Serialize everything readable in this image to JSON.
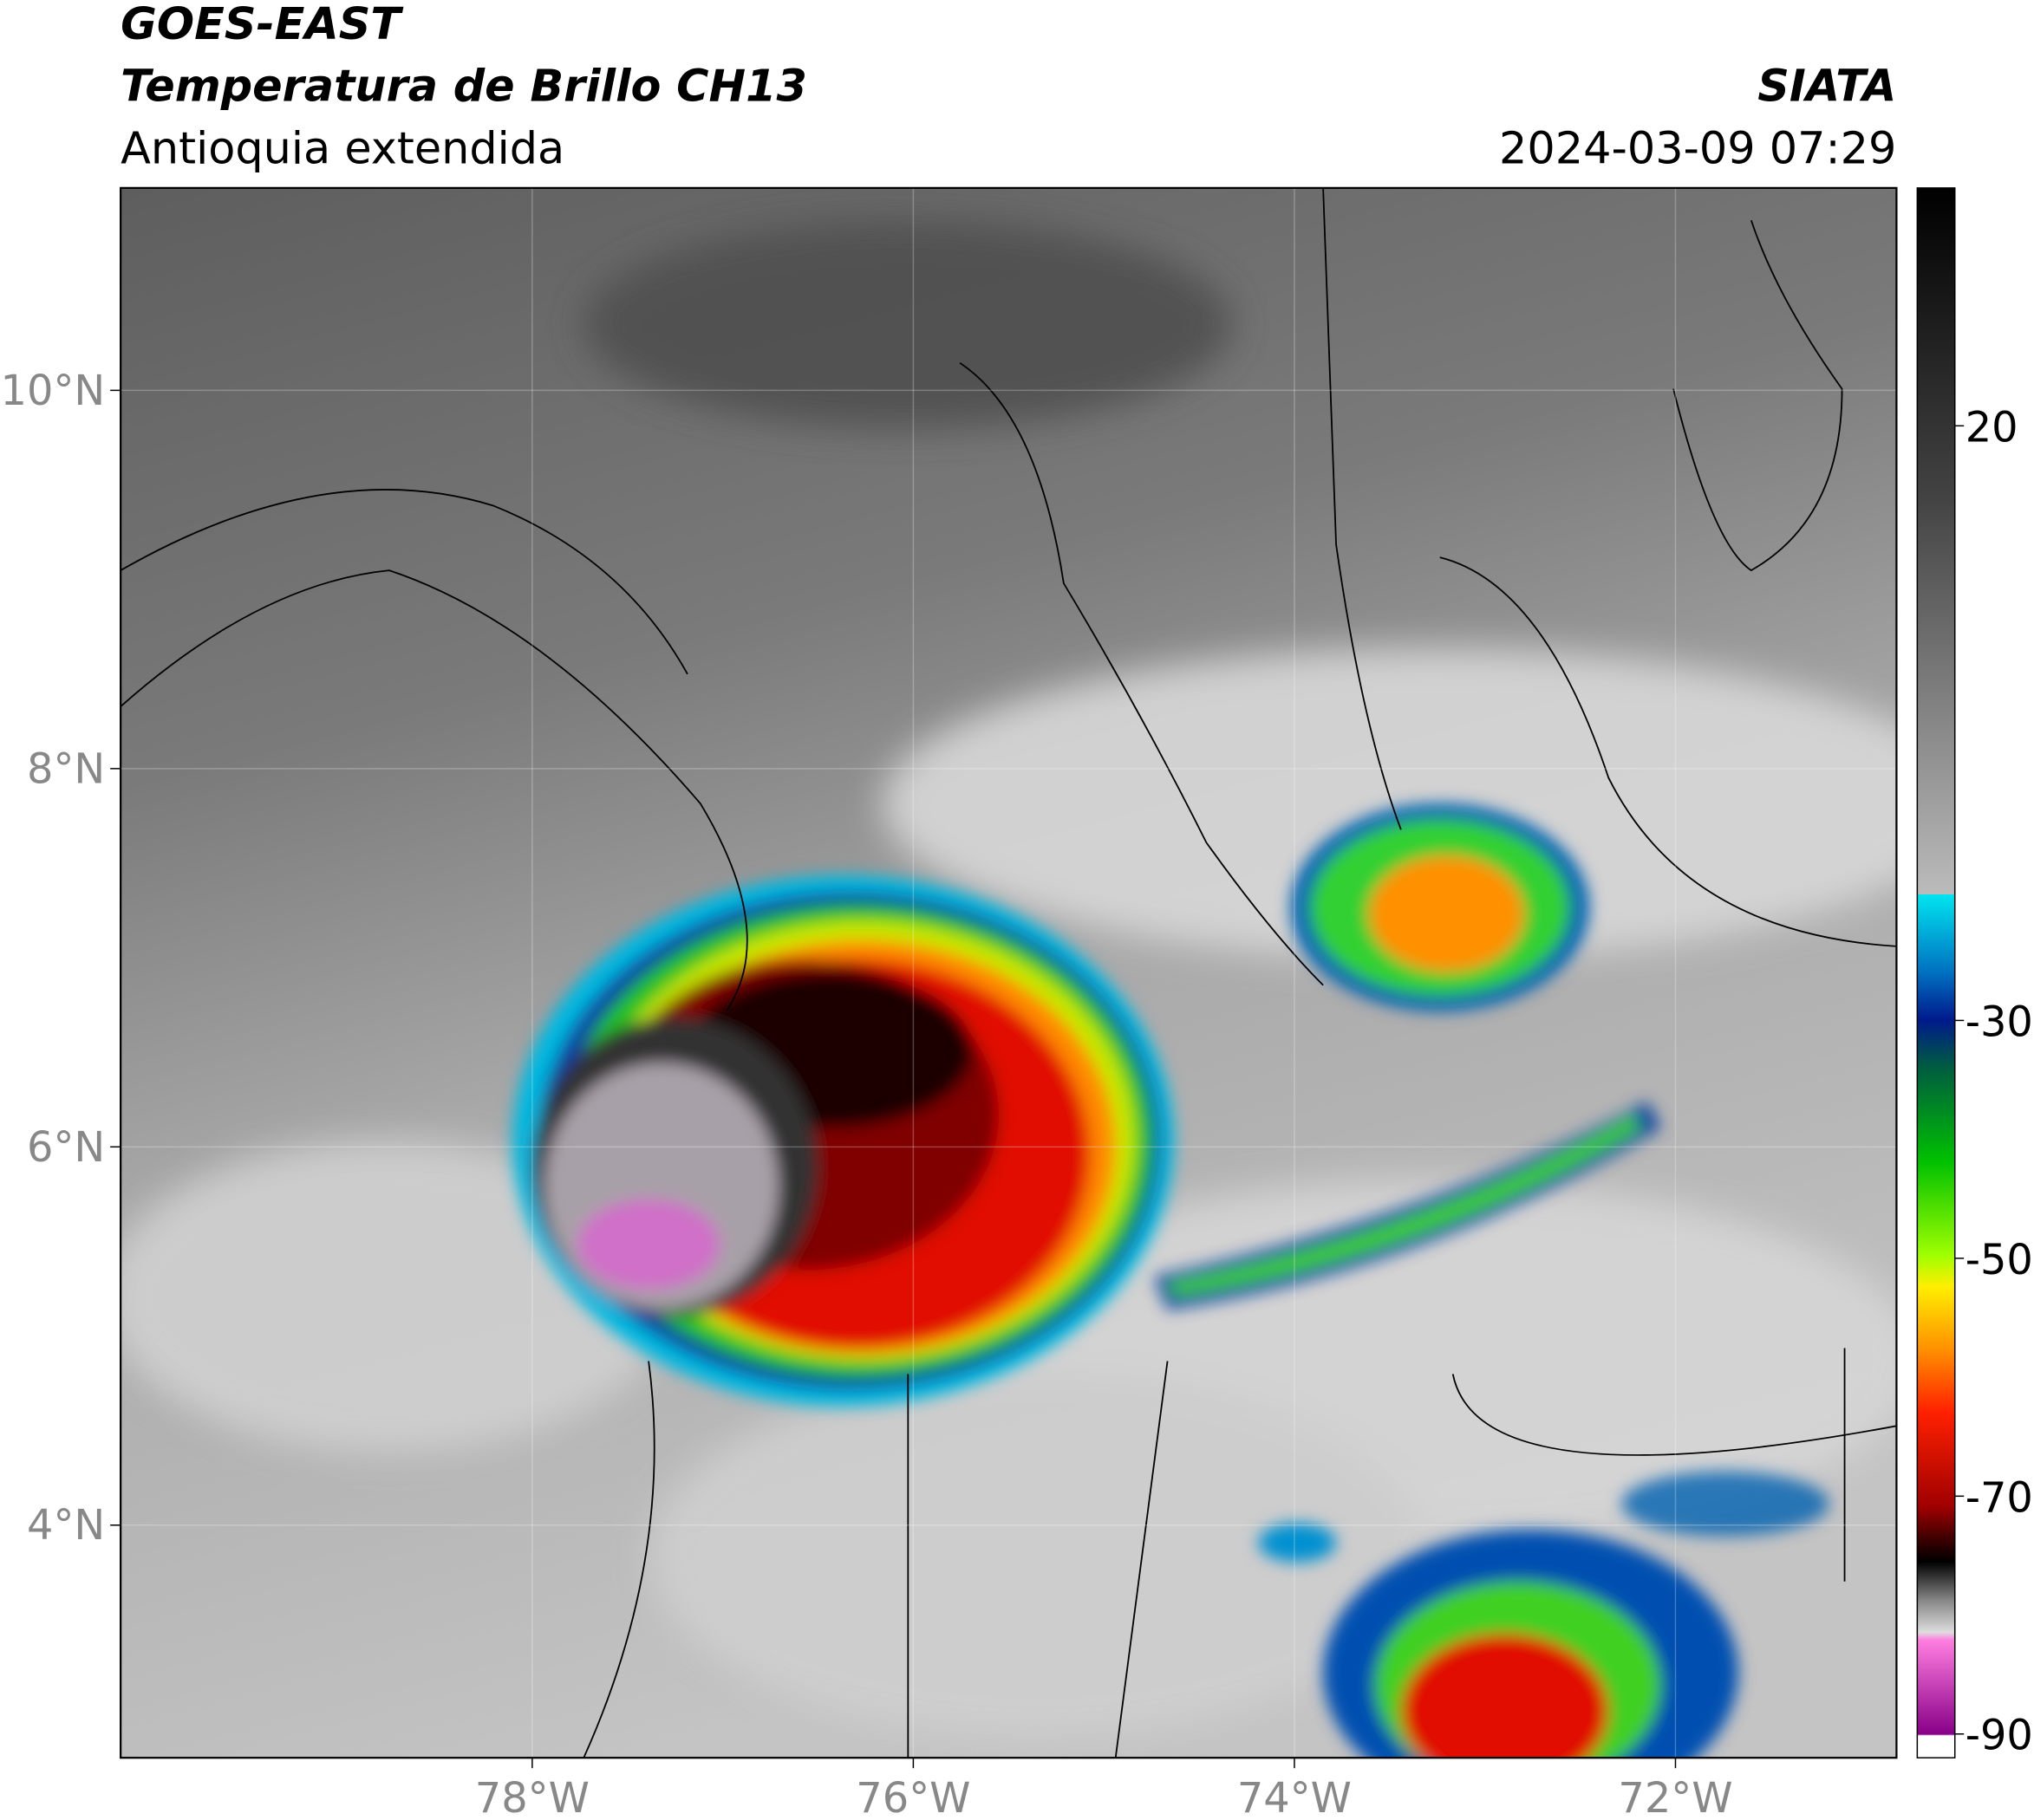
{
  "header": {
    "line1": "GOES-EAST",
    "line2": "Temperatura de Brillo CH13",
    "line3": "Antioquia extendida",
    "source": "SIATA",
    "datetime": "2024-03-09 07:29"
  },
  "map": {
    "xlim": [
      -80.16,
      -70.84
    ],
    "ylim": [
      2.77,
      11.07
    ],
    "xticks": [
      {
        "value": -78,
        "label": "78°W"
      },
      {
        "value": -76,
        "label": "76°W"
      },
      {
        "value": -74,
        "label": "74°W"
      },
      {
        "value": -72,
        "label": "72°W"
      }
    ],
    "yticks": [
      {
        "value": 4,
        "label": "4°N"
      },
      {
        "value": 6,
        "label": "6°N"
      },
      {
        "value": 8,
        "label": "8°N"
      },
      {
        "value": 10,
        "label": "10°N"
      }
    ]
  },
  "colorbar": {
    "lim": [
      40,
      -92
    ],
    "ticks": [
      20,
      -30,
      -50,
      -70,
      -90
    ]
  }
}
